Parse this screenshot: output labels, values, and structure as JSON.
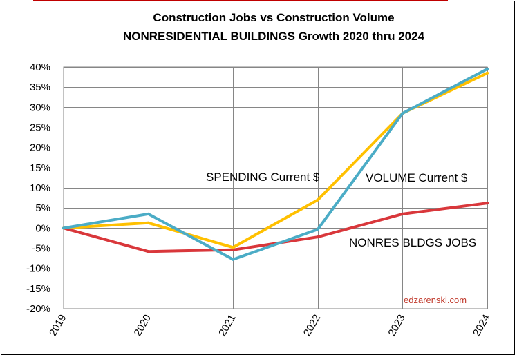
{
  "chart_data": {
    "type": "line",
    "title_line1": "Construction Jobs vs Construction Volume",
    "title_line2": "NONRESIDENTIAL BUILDINGS Growth 2020 thru 2024",
    "x": [
      "2019",
      "2020",
      "2021",
      "2022",
      "2023",
      "2024"
    ],
    "ylim": [
      -20,
      40
    ],
    "yticks": [
      40,
      35,
      30,
      25,
      20,
      15,
      10,
      5,
      0,
      -5,
      -10,
      -15,
      -20
    ],
    "ytick_labels": [
      "40%",
      "35%",
      "30%",
      "25%",
      "20%",
      "15%",
      "10%",
      "5%",
      "0%",
      "-5%",
      "-10%",
      "-15%",
      "-20%"
    ],
    "grid": true,
    "series": [
      {
        "name": "SPENDING Current $",
        "color": "#FFC000",
        "values": [
          0,
          1.3,
          -4.8,
          7,
          28.5,
          38.5
        ]
      },
      {
        "name": "VOLUME Current $",
        "color": "#4BACC6",
        "values": [
          0,
          3.5,
          -7.8,
          -0.3,
          28.5,
          39.5
        ]
      },
      {
        "name": "NONRES BLDGS JOBS",
        "color": "#D9373B",
        "values": [
          0,
          -5.8,
          -5.4,
          -2.2,
          3.5,
          6.2
        ]
      }
    ],
    "annotations": [
      "SPENDING Current $",
      "VOLUME Current $",
      "NONRES BLDGS JOBS"
    ],
    "credit": "edzarenski.com",
    "credit_color": "#C0392B",
    "accent_color": "#C00000"
  }
}
